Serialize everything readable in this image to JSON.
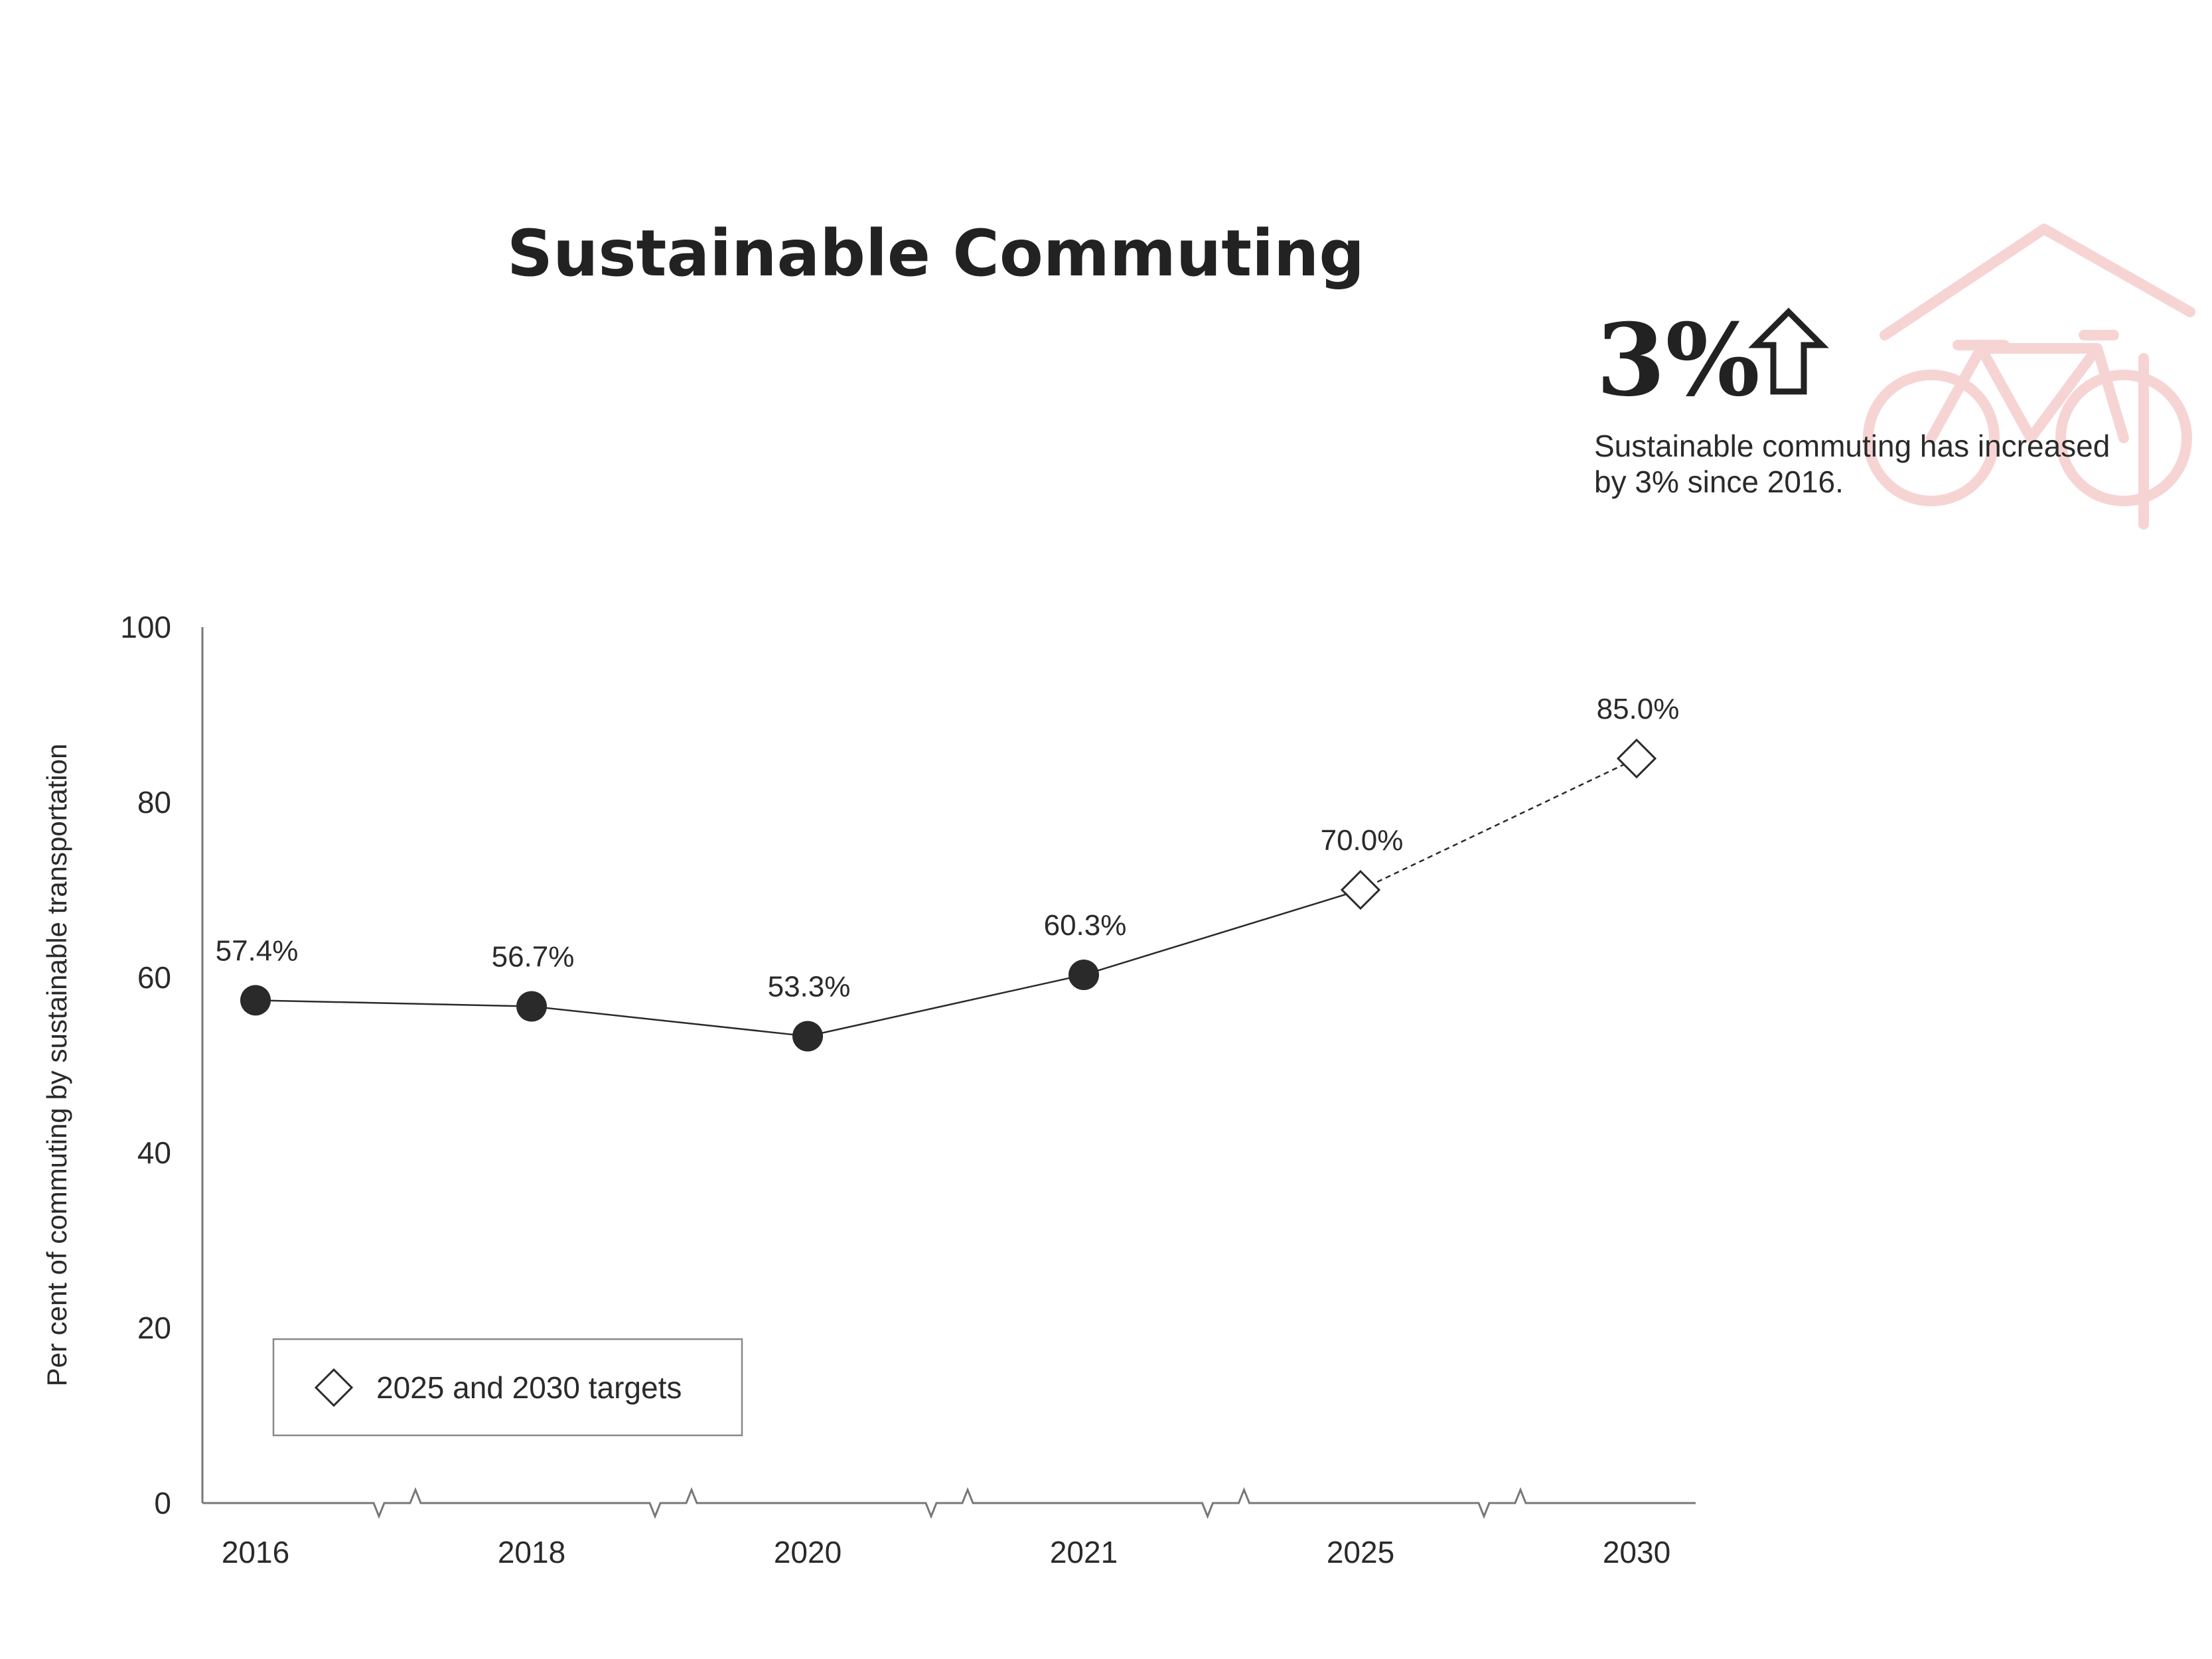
{
  "title": "Sustainable Commuting",
  "highlight": {
    "value": "3%",
    "description_line1": "Sustainable commuting has increased",
    "description_line2": "by 3% since 2016.",
    "arrow_icon": "up-arrow-outline-icon",
    "decor_icon": "bicycle-under-roof-icon",
    "decor_color": "#f7d4d4"
  },
  "legend": {
    "label": "2025 and 2030 targets",
    "marker": "hollow-diamond"
  },
  "chart_data": {
    "type": "line",
    "title": "Sustainable Commuting",
    "ylabel": "Per cent of commuting by sustainable transportation",
    "xlabel": "",
    "categories": [
      "2016",
      "2018",
      "2020",
      "2021",
      "2025",
      "2030"
    ],
    "ylim": [
      0,
      100
    ],
    "yticks": [
      0,
      20,
      40,
      60,
      80,
      100
    ],
    "axis_breaks": true,
    "grid": false,
    "legend_position": "bottom-left",
    "series": [
      {
        "kind": "actual",
        "marker": "filled-circle",
        "line_style": "solid",
        "points": [
          {
            "x": "2016",
            "y": 57.4,
            "label": "57.4%"
          },
          {
            "x": "2018",
            "y": 56.7,
            "label": "56.7%"
          },
          {
            "x": "2020",
            "y": 53.3,
            "label": "53.3%"
          },
          {
            "x": "2021",
            "y": 60.3,
            "label": "60.3%"
          }
        ]
      },
      {
        "name": "2025 and 2030 targets",
        "kind": "target",
        "marker": "hollow-diamond",
        "line_style": "solid-then-dashed",
        "points": [
          {
            "x": "2025",
            "y": 70.0,
            "label": "70.0%"
          },
          {
            "x": "2030",
            "y": 85.0,
            "label": "85.0%"
          }
        ]
      }
    ],
    "colors": {
      "line": "#2a2a2a",
      "marker": "#2a2a2a",
      "axis": "#777777"
    }
  }
}
